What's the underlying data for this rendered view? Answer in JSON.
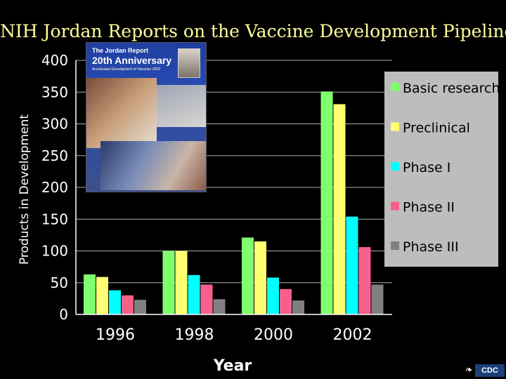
{
  "page_title": "NIH Jordan Reports on the Vaccine Development Pipeline",
  "cover": {
    "line1": "The Jordan Report",
    "line2": "20th Anniversary",
    "line3": "Accelerated Development of Vaccines 2002"
  },
  "logo_text": "CDC",
  "chart_data": {
    "type": "bar",
    "title": "",
    "xlabel": "Year",
    "ylabel": "Products in Development",
    "categories": [
      "1996",
      "1998",
      "2000",
      "2002"
    ],
    "ylim": [
      0,
      400
    ],
    "yticks": [
      0,
      50,
      100,
      150,
      200,
      250,
      300,
      350,
      400
    ],
    "grid": true,
    "legend_position": "right",
    "series": [
      {
        "name": "Basic research",
        "color": "#80ff6e",
        "values": [
          63,
          100,
          121,
          351
        ]
      },
      {
        "name": "Preclinical",
        "color": "#ffff73",
        "values": [
          59,
          100,
          115,
          331
        ]
      },
      {
        "name": "Phase I",
        "color": "#00ffff",
        "values": [
          38,
          62,
          58,
          154
        ]
      },
      {
        "name": "Phase II",
        "color": "#f8608c",
        "values": [
          30,
          47,
          40,
          106
        ]
      },
      {
        "name": "Phase III",
        "color": "#808080",
        "values": [
          23,
          24,
          22,
          47
        ]
      }
    ]
  }
}
